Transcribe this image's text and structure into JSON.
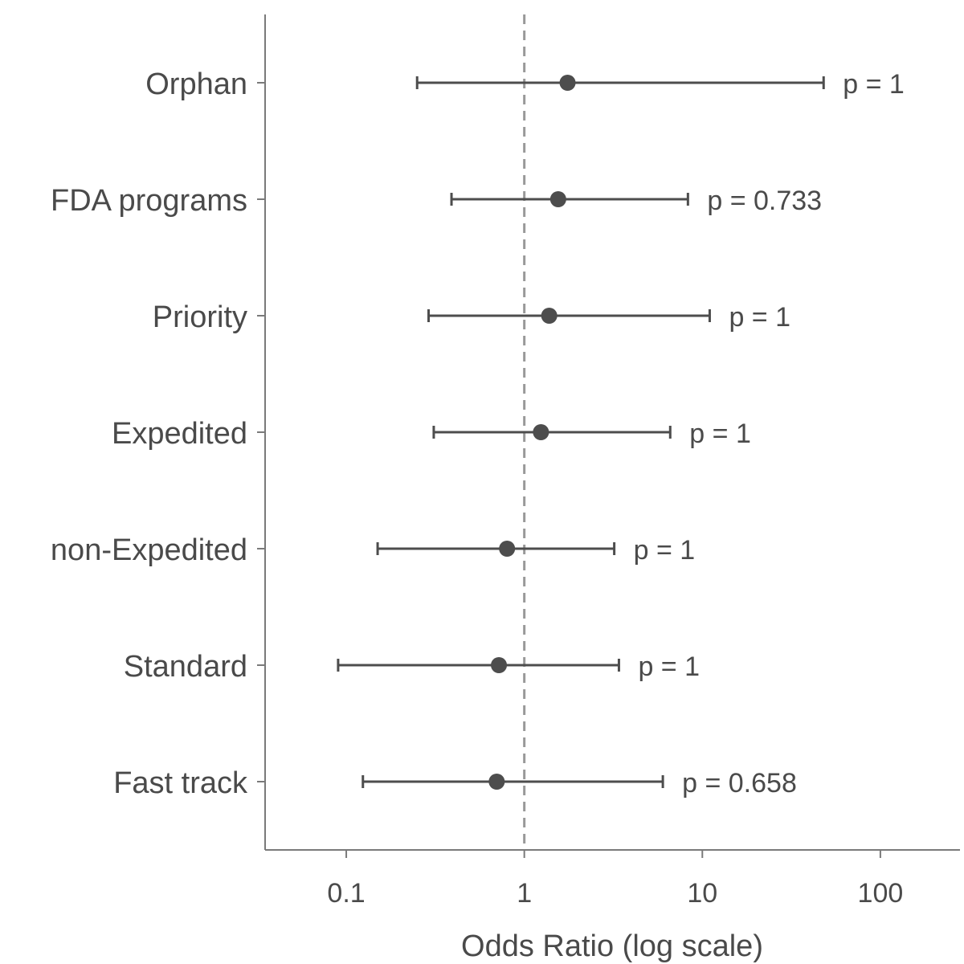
{
  "chart_data": {
    "type": "forest",
    "title": "",
    "xlabel": "Odds Ratio (log scale)",
    "ylabel": "",
    "x_scale": "log",
    "xlim": [
      0.035,
      280
    ],
    "x_ticks": [
      0.1,
      1,
      10,
      100
    ],
    "x_tick_labels": [
      "0.1",
      "1",
      "10",
      "100"
    ],
    "reference_line": 1,
    "grid": false,
    "legend": "none",
    "colors": {
      "point": "#4d4d4d",
      "errorbar": "#4d4d4d",
      "axis": "#7a7a7a",
      "reference_line": "#999999",
      "text": "#4a4a4a"
    },
    "rows": [
      {
        "label": "Orphan",
        "or": 1.75,
        "lower": 0.25,
        "upper": 48,
        "p_label": "p = 1"
      },
      {
        "label": "FDA programs",
        "or": 1.55,
        "lower": 0.39,
        "upper": 8.3,
        "p_label": "p = 0.733"
      },
      {
        "label": "Priority",
        "or": 1.38,
        "lower": 0.29,
        "upper": 11,
        "p_label": "p = 1"
      },
      {
        "label": "Expedited",
        "or": 1.24,
        "lower": 0.31,
        "upper": 6.6,
        "p_label": "p = 1"
      },
      {
        "label": "non-Expedited",
        "or": 0.8,
        "lower": 0.15,
        "upper": 3.2,
        "p_label": "p = 1"
      },
      {
        "label": "Standard",
        "or": 0.72,
        "lower": 0.09,
        "upper": 3.4,
        "p_label": "p = 1"
      },
      {
        "label": "Fast track",
        "or": 0.7,
        "lower": 0.124,
        "upper": 6.0,
        "p_label": "p = 0.658"
      }
    ]
  }
}
